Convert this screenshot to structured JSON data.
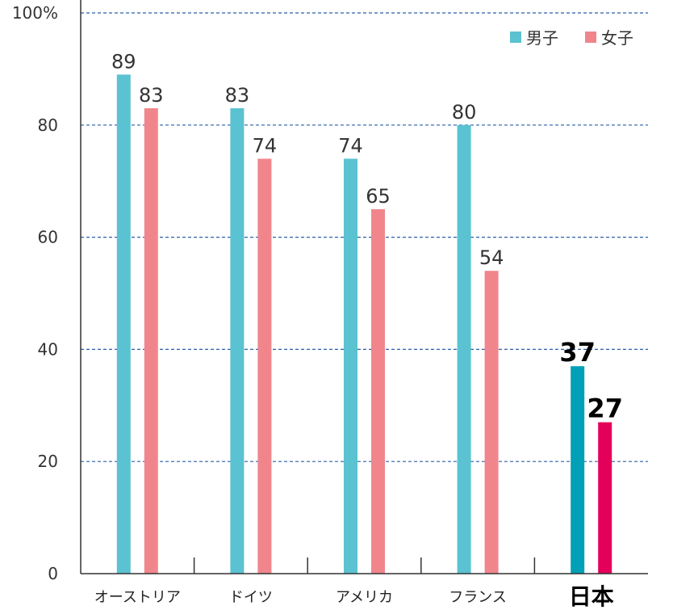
{
  "chart_data": {
    "type": "bar",
    "categories": [
      "オーストリア",
      "ドイツ",
      "アメリカ",
      "フランス",
      "日本"
    ],
    "highlight_category": "日本",
    "series": [
      {
        "name": "男子",
        "values": [
          89,
          83,
          74,
          80,
          37
        ],
        "color": "#5bc2d1",
        "highlight_color": "#00a0b6"
      },
      {
        "name": "女子",
        "values": [
          83,
          74,
          65,
          54,
          27
        ],
        "color": "#f0868c",
        "highlight_color": "#e4005a"
      }
    ],
    "ylim": [
      0,
      100
    ],
    "yticks": [
      0,
      20,
      40,
      60,
      80,
      100
    ],
    "ytick_labels": [
      "0",
      "20",
      "40",
      "60",
      "80",
      "100%"
    ],
    "grid": true,
    "grid_color": "#2b5ea8",
    "legend_position": "top-right"
  }
}
